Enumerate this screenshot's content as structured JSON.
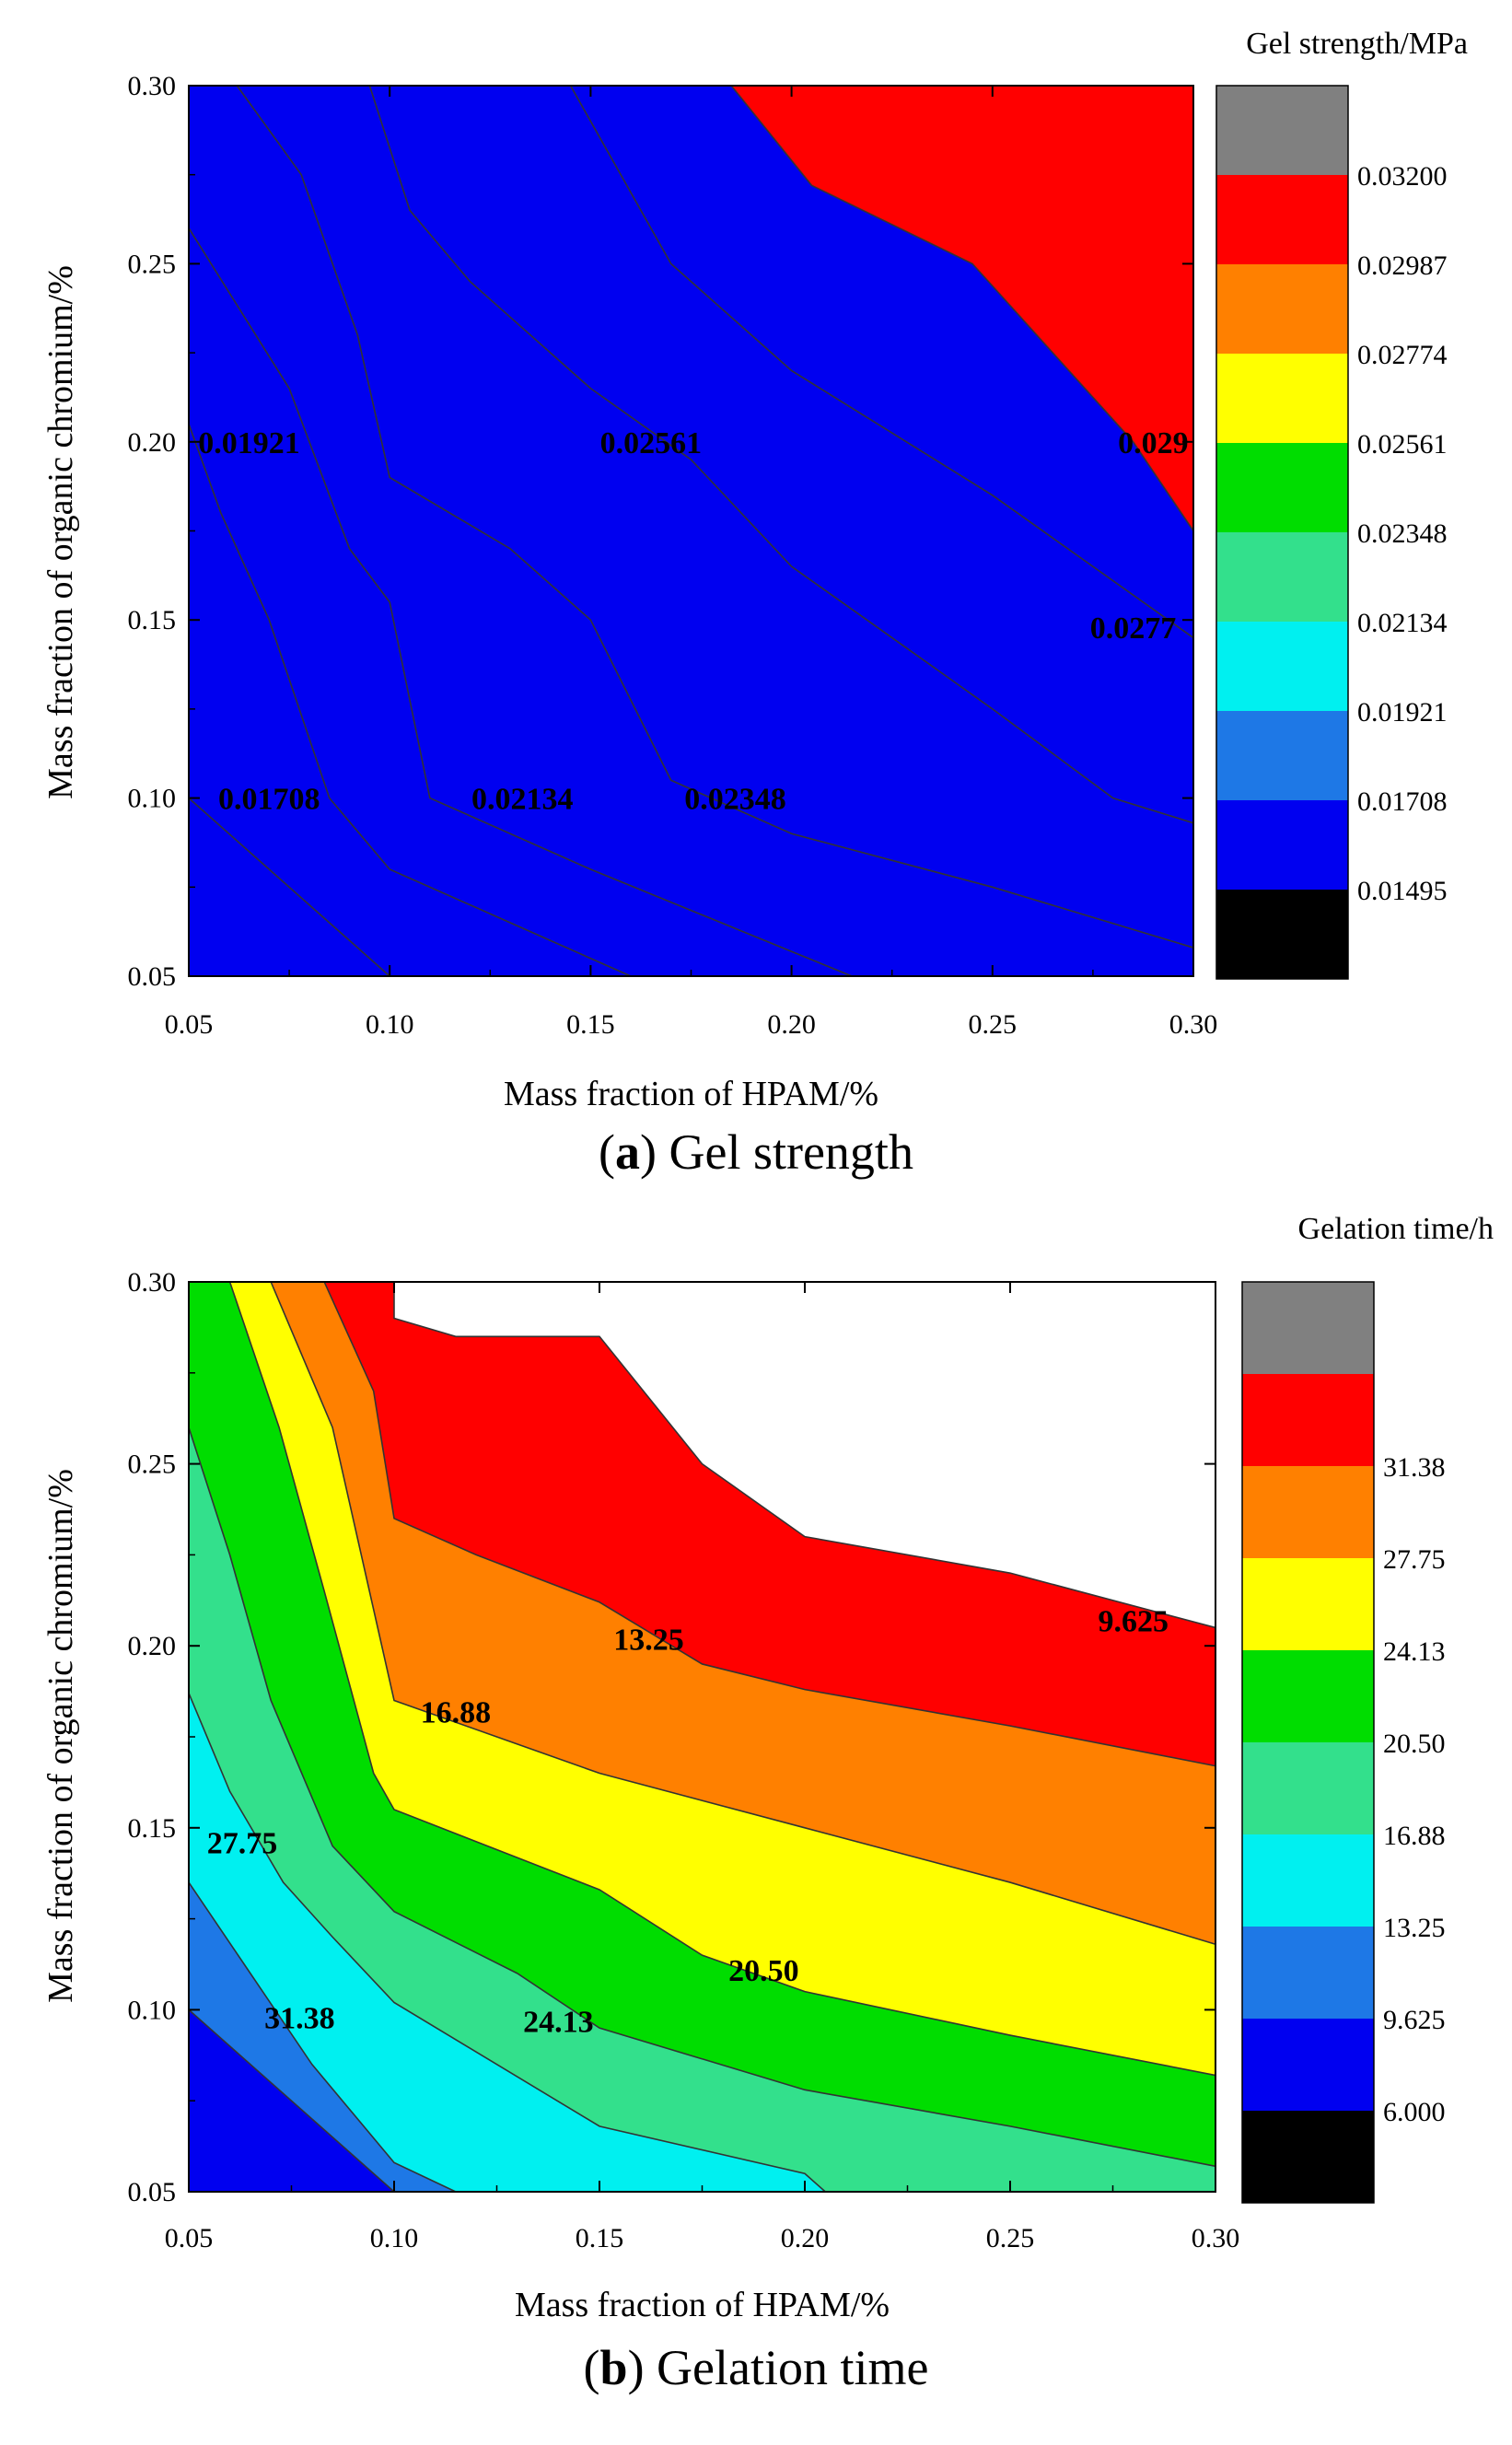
{
  "chart_data": [
    {
      "id": "a",
      "type": "contour",
      "panel_label": "a",
      "caption": "Gel strength",
      "xlabel": "Mass fraction of HPAM/%",
      "ylabel": "Mass fraction of organic chromium/%",
      "xlim": [
        0.05,
        0.3
      ],
      "ylim": [
        0.05,
        0.3
      ],
      "x_ticks": [
        "0.05",
        "0.10",
        "0.15",
        "0.20",
        "0.25",
        "0.30"
      ],
      "y_ticks": [
        "0.05",
        "0.10",
        "0.15",
        "0.20",
        "0.25",
        "0.30"
      ],
      "colorbar_title": "Gel strength/MPa",
      "colorbar_labels": [
        "0.01495",
        "0.01708",
        "0.01921",
        "0.02134",
        "0.02348",
        "0.02561",
        "0.02774",
        "0.02987",
        "0.03200"
      ],
      "colorbar_colors": [
        "#000000",
        "#0000f0",
        "#1e78e6",
        "#00f0f0",
        "#33e08c",
        "#00dd00",
        "#ffff00",
        "#ff8000",
        "#ff0000",
        "#808080"
      ],
      "band_colors": [
        "#ffffff",
        "#0000f0",
        "#1e78e6",
        "#00f0f0",
        "#33e08c",
        "#00dd00",
        "#ffff00",
        "#ff8000",
        "#ff0000"
      ],
      "contours": [
        {
          "level": "0.01495",
          "points": [
            [
              0.05,
              0.1
            ],
            [
              0.085,
              0.065
            ],
            [
              0.1,
              0.05
            ]
          ]
        },
        {
          "level": "0.01708",
          "points": [
            [
              0.05,
              0.205
            ],
            [
              0.058,
              0.18
            ],
            [
              0.07,
              0.15
            ],
            [
              0.085,
              0.1
            ],
            [
              0.1,
              0.08
            ],
            [
              0.16,
              0.05
            ]
          ]
        },
        {
          "level": "0.01921",
          "points": [
            [
              0.05,
              0.26
            ],
            [
              0.075,
              0.215
            ],
            [
              0.09,
              0.17
            ],
            [
              0.1,
              0.155
            ],
            [
              0.11,
              0.1
            ],
            [
              0.15,
              0.08
            ],
            [
              0.215,
              0.05
            ]
          ]
        },
        {
          "level": "0.02134",
          "points": [
            [
              0.062,
              0.3
            ],
            [
              0.078,
              0.275
            ],
            [
              0.092,
              0.23
            ],
            [
              0.1,
              0.19
            ],
            [
              0.13,
              0.17
            ],
            [
              0.15,
              0.15
            ],
            [
              0.17,
              0.105
            ],
            [
              0.2,
              0.09
            ],
            [
              0.25,
              0.075
            ],
            [
              0.3,
              0.058
            ]
          ]
        },
        {
          "level": "0.02348",
          "points": [
            [
              0.095,
              0.3
            ],
            [
              0.105,
              0.265
            ],
            [
              0.12,
              0.245
            ],
            [
              0.15,
              0.215
            ],
            [
              0.175,
              0.195
            ],
            [
              0.2,
              0.165
            ],
            [
              0.25,
              0.125
            ],
            [
              0.28,
              0.1
            ],
            [
              0.3,
              0.093
            ]
          ]
        },
        {
          "level": "0.02561",
          "points": [
            [
              0.145,
              0.3
            ],
            [
              0.17,
              0.25
            ],
            [
              0.2,
              0.22
            ],
            [
              0.25,
              0.185
            ],
            [
              0.3,
              0.145
            ]
          ]
        },
        {
          "level": "0.02774",
          "points": [
            [
              0.185,
              0.3
            ],
            [
              0.205,
              0.272
            ],
            [
              0.245,
              0.25
            ],
            [
              0.285,
              0.2
            ],
            [
              0.3,
              0.175
            ]
          ]
        }
      ],
      "contour_labels": [
        {
          "text": "0.01921",
          "x": 0.065,
          "y": 0.2
        },
        {
          "text": "0.02561",
          "x": 0.165,
          "y": 0.2
        },
        {
          "text": "0.029",
          "x": 0.29,
          "y": 0.2
        },
        {
          "text": "0.0277",
          "x": 0.285,
          "y": 0.148
        },
        {
          "text": "0.01708",
          "x": 0.07,
          "y": 0.1
        },
        {
          "text": "0.02134",
          "x": 0.133,
          "y": 0.1
        },
        {
          "text": "0.02348",
          "x": 0.186,
          "y": 0.1
        }
      ]
    },
    {
      "id": "b",
      "type": "contour",
      "panel_label": "b",
      "caption": "Gelation time",
      "xlabel": "Mass fraction of HPAM/%",
      "ylabel": "Mass fraction of organic chromium/%",
      "xlim": [
        0.05,
        0.3
      ],
      "ylim": [
        0.05,
        0.3
      ],
      "x_ticks": [
        "0.05",
        "0.10",
        "0.15",
        "0.20",
        "0.25",
        "0.30"
      ],
      "y_ticks": [
        "0.05",
        "0.10",
        "0.15",
        "0.20",
        "0.25",
        "0.30"
      ],
      "colorbar_title": "Gelation time/h",
      "colorbar_labels": [
        "6.000",
        "9.625",
        "13.25",
        "16.88",
        "20.50",
        "24.13",
        "27.75",
        "31.38"
      ],
      "colorbar_colors": [
        "#000000",
        "#0000f0",
        "#1e78e6",
        "#00f0f0",
        "#33e08c",
        "#00dd00",
        "#ffff00",
        "#ff8000",
        "#ff0000",
        "#808080"
      ],
      "band_colors": [
        "#0000f0",
        "#1e78e6",
        "#00f0f0",
        "#33e08c",
        "#00dd00",
        "#ffff00",
        "#ff8000",
        "#ff0000",
        "#ffffff"
      ],
      "contours": [
        {
          "level": "9.625",
          "points": [
            [
              0.1,
              0.3
            ],
            [
              0.1,
              0.29
            ],
            [
              0.115,
              0.285
            ],
            [
              0.15,
              0.285
            ],
            [
              0.175,
              0.25
            ],
            [
              0.2,
              0.23
            ],
            [
              0.25,
              0.22
            ],
            [
              0.3,
              0.205
            ]
          ]
        },
        {
          "level": "13.25",
          "points": [
            [
              0.083,
              0.3
            ],
            [
              0.095,
              0.27
            ],
            [
              0.1,
              0.235
            ],
            [
              0.12,
              0.225
            ],
            [
              0.15,
              0.212
            ],
            [
              0.175,
              0.195
            ],
            [
              0.2,
              0.188
            ],
            [
              0.25,
              0.178
            ],
            [
              0.3,
              0.167
            ]
          ]
        },
        {
          "level": "16.88",
          "points": [
            [
              0.07,
              0.3
            ],
            [
              0.085,
              0.26
            ],
            [
              0.095,
              0.21
            ],
            [
              0.1,
              0.185
            ],
            [
              0.125,
              0.175
            ],
            [
              0.15,
              0.165
            ],
            [
              0.2,
              0.15
            ],
            [
              0.25,
              0.135
            ],
            [
              0.3,
              0.118
            ]
          ]
        },
        {
          "level": "20.50",
          "points": [
            [
              0.06,
              0.3
            ],
            [
              0.072,
              0.26
            ],
            [
              0.083,
              0.215
            ],
            [
              0.095,
              0.165
            ],
            [
              0.1,
              0.155
            ],
            [
              0.15,
              0.133
            ],
            [
              0.175,
              0.115
            ],
            [
              0.2,
              0.105
            ],
            [
              0.25,
              0.093
            ],
            [
              0.3,
              0.082
            ]
          ]
        },
        {
          "level": "24.13",
          "points": [
            [
              0.05,
              0.26
            ],
            [
              0.06,
              0.225
            ],
            [
              0.07,
              0.185
            ],
            [
              0.085,
              0.145
            ],
            [
              0.1,
              0.127
            ],
            [
              0.13,
              0.11
            ],
            [
              0.15,
              0.095
            ],
            [
              0.2,
              0.078
            ],
            [
              0.25,
              0.068
            ],
            [
              0.3,
              0.057
            ]
          ]
        },
        {
          "level": "27.75",
          "points": [
            [
              0.05,
              0.187
            ],
            [
              0.06,
              0.16
            ],
            [
              0.073,
              0.135
            ],
            [
              0.085,
              0.12
            ],
            [
              0.1,
              0.102
            ],
            [
              0.15,
              0.068
            ],
            [
              0.2,
              0.055
            ],
            [
              0.205,
              0.05
            ]
          ]
        },
        {
          "level": "31.38",
          "points": [
            [
              0.05,
              0.135
            ],
            [
              0.065,
              0.11
            ],
            [
              0.08,
              0.085
            ],
            [
              0.1,
              0.058
            ],
            [
              0.115,
              0.05
            ]
          ]
        },
        {
          "level": "outer",
          "points": [
            [
              0.05,
              0.1
            ],
            [
              0.07,
              0.08
            ],
            [
              0.09,
              0.06
            ],
            [
              0.1,
              0.05
            ]
          ]
        }
      ],
      "contour_labels": [
        {
          "text": "9.625",
          "x": 0.28,
          "y": 0.207
        },
        {
          "text": "13.25",
          "x": 0.162,
          "y": 0.202
        },
        {
          "text": "16.88",
          "x": 0.115,
          "y": 0.182
        },
        {
          "text": "27.75",
          "x": 0.063,
          "y": 0.146
        },
        {
          "text": "20.50",
          "x": 0.19,
          "y": 0.111
        },
        {
          "text": "31.38",
          "x": 0.077,
          "y": 0.098
        },
        {
          "text": "24.13",
          "x": 0.14,
          "y": 0.097
        }
      ]
    }
  ]
}
